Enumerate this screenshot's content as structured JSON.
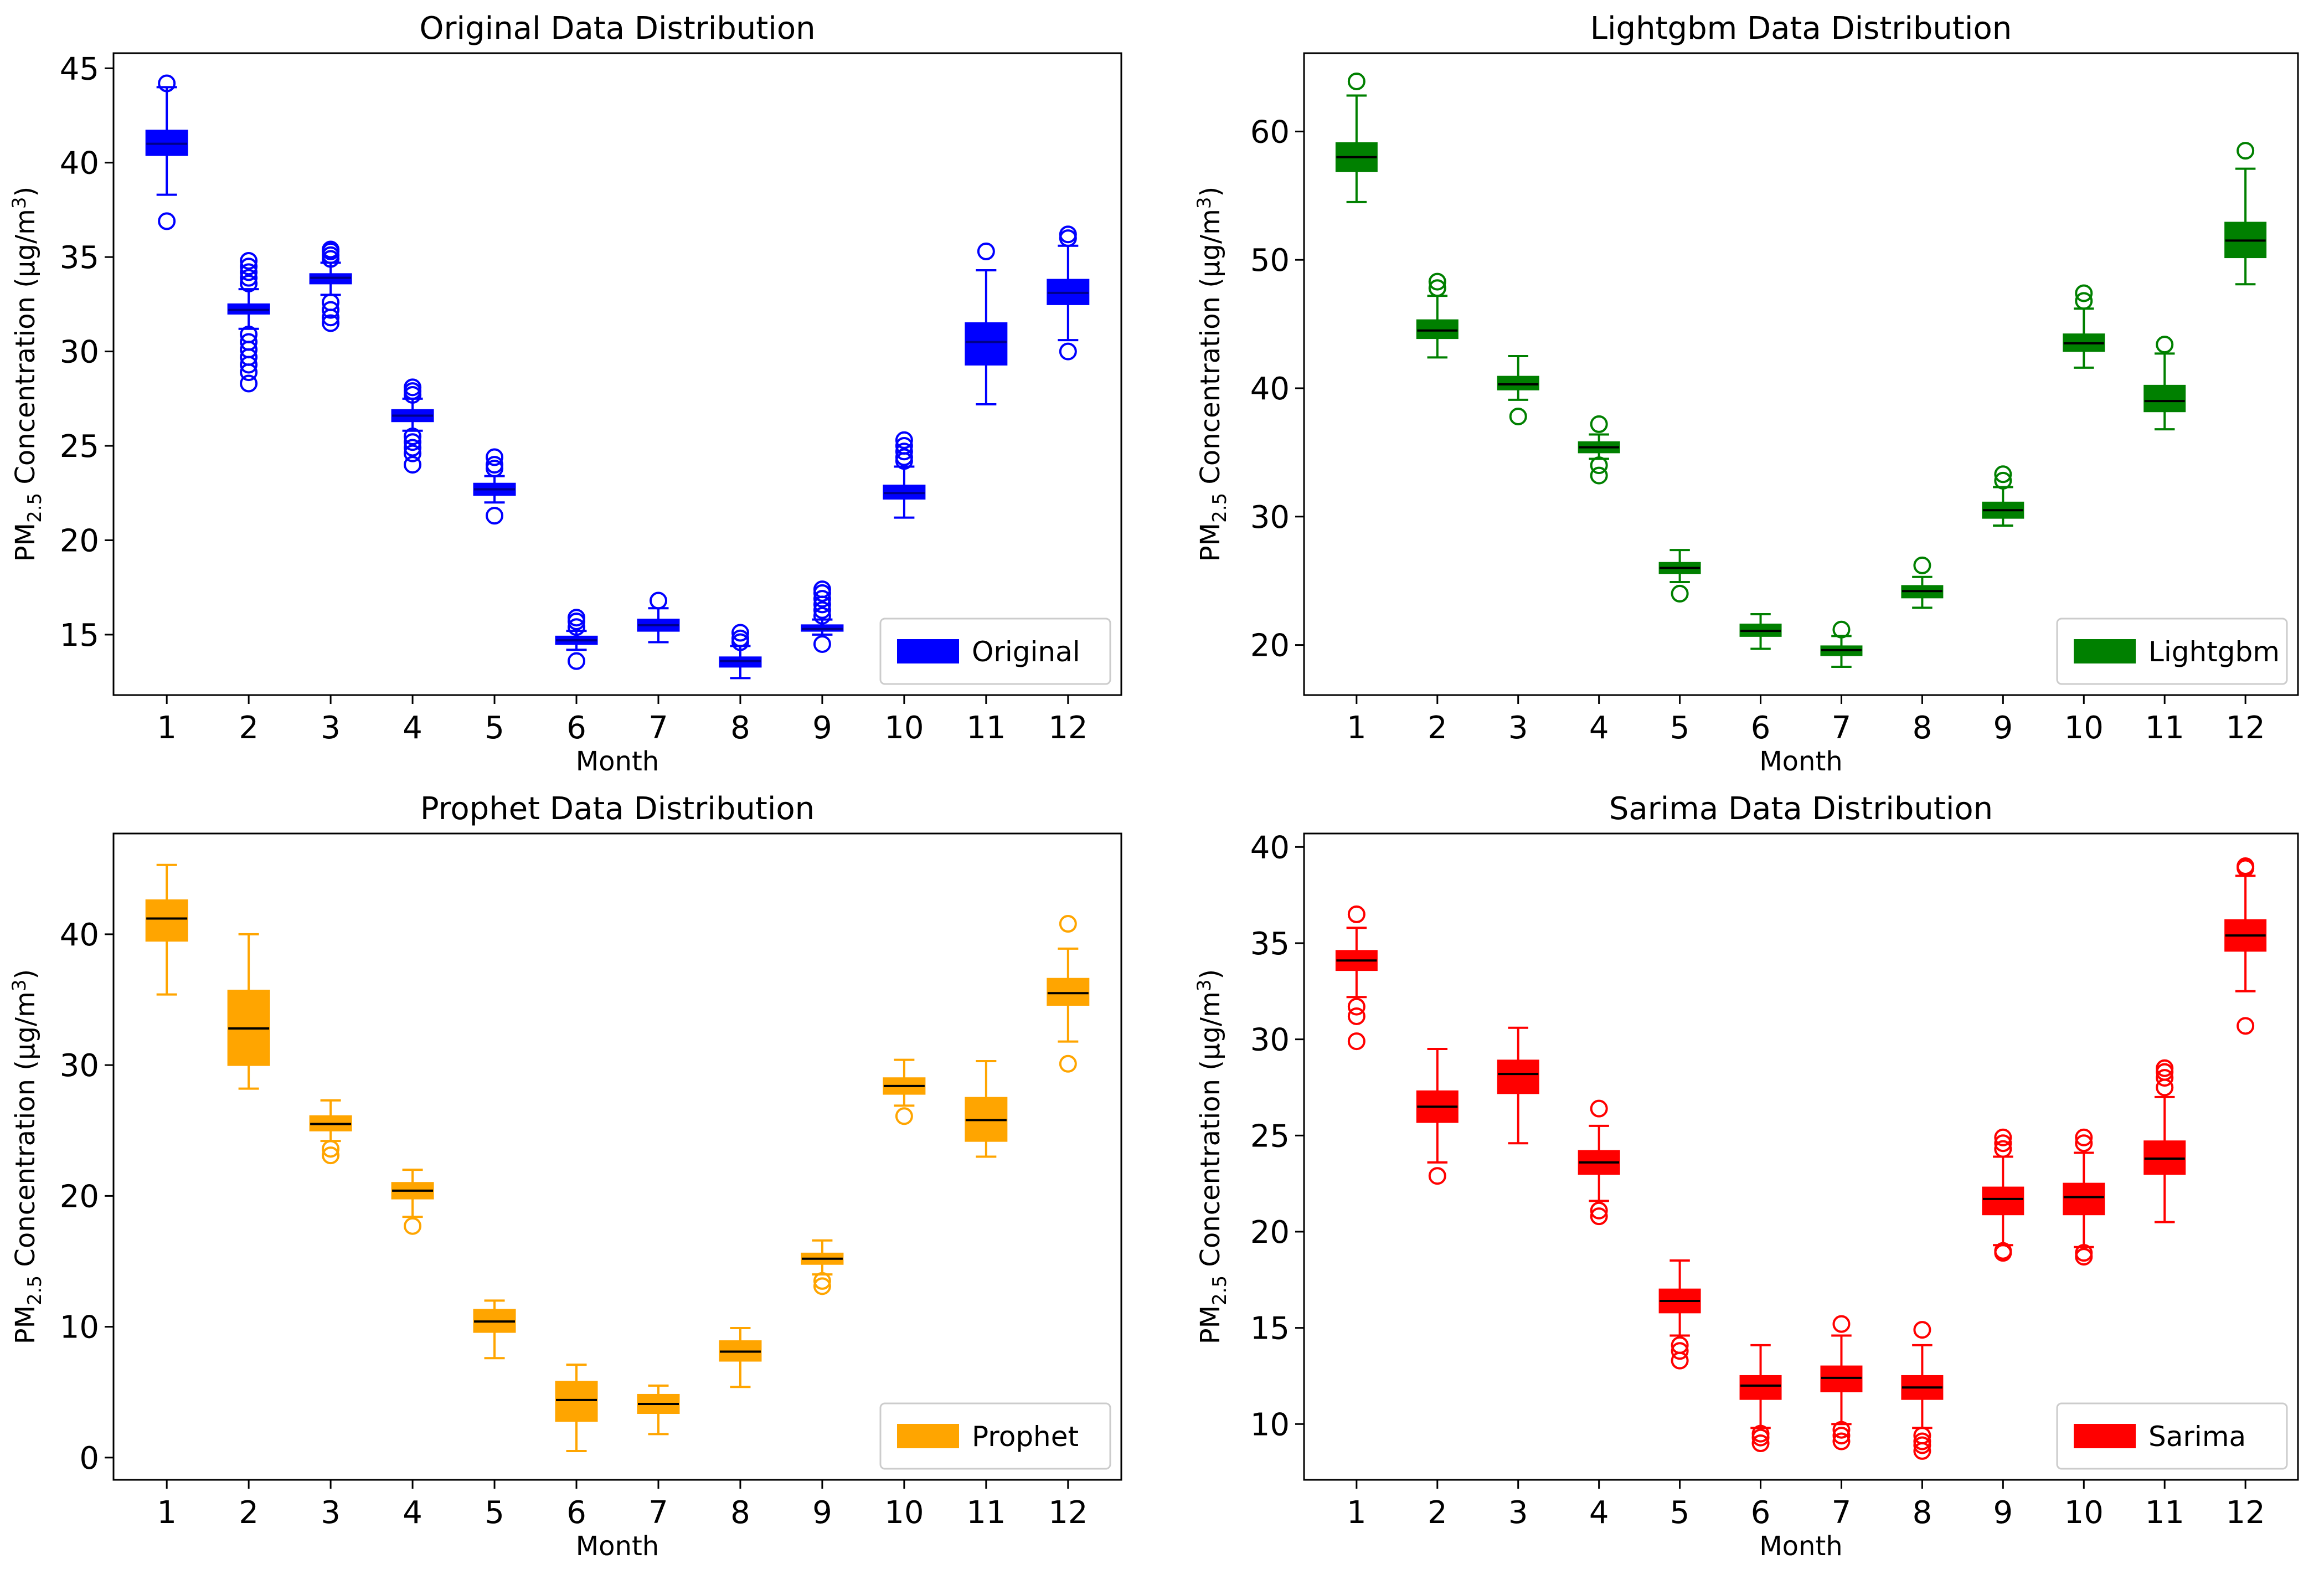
{
  "chart_data": [
    {
      "type": "box",
      "title": "Original Data Distribution",
      "xlabel": "Month",
      "ylabel": {
        "prefix": "PM",
        "sub": "2.5",
        "mid": " Concentration (µg/m",
        "sup": "3",
        "suffix": ")"
      },
      "color": "#0000ff",
      "median_color": "#00008b",
      "legend": "Original",
      "legend_position": "lower right",
      "categories": [
        "1",
        "2",
        "3",
        "4",
        "5",
        "6",
        "7",
        "8",
        "9",
        "10",
        "11",
        "12"
      ],
      "ylim": [
        11.8,
        45.8
      ],
      "yticks": [
        15,
        20,
        25,
        30,
        35,
        40,
        45
      ],
      "boxes": [
        {
          "low": 38.3,
          "q1": 40.4,
          "med": 41.0,
          "q3": 41.7,
          "high": 44.0,
          "fliers": [
            44.2,
            36.9
          ]
        },
        {
          "low": 31.2,
          "q1": 32.0,
          "med": 32.2,
          "q3": 32.5,
          "high": 33.3,
          "fliers": [
            33.6,
            33.9,
            34.2,
            34.5,
            34.8,
            30.9,
            30.5,
            30.1,
            29.7,
            29.3,
            28.9,
            28.3
          ]
        },
        {
          "low": 33.0,
          "q1": 33.6,
          "med": 33.9,
          "q3": 34.1,
          "high": 34.7,
          "fliers": [
            34.9,
            35.1,
            35.3,
            35.4,
            32.6,
            32.2,
            31.8,
            31.5
          ]
        },
        {
          "low": 25.8,
          "q1": 26.3,
          "med": 26.6,
          "q3": 26.9,
          "high": 27.5,
          "fliers": [
            27.7,
            27.9,
            28.1,
            25.5,
            25.2,
            24.9,
            24.6,
            24.0
          ]
        },
        {
          "low": 22.0,
          "q1": 22.4,
          "med": 22.7,
          "q3": 23.0,
          "high": 23.4,
          "fliers": [
            23.8,
            24.0,
            24.4,
            21.3
          ]
        },
        {
          "low": 14.2,
          "q1": 14.5,
          "med": 14.7,
          "q3": 14.9,
          "high": 15.2,
          "fliers": [
            15.4,
            15.7,
            15.9,
            13.6
          ]
        },
        {
          "low": 14.6,
          "q1": 15.2,
          "med": 15.5,
          "q3": 15.8,
          "high": 16.4,
          "fliers": [
            16.8
          ]
        },
        {
          "low": 12.7,
          "q1": 13.3,
          "med": 13.6,
          "q3": 13.8,
          "high": 14.4,
          "fliers": [
            14.6,
            14.8,
            15.1
          ]
        },
        {
          "low": 15.0,
          "q1": 15.2,
          "med": 15.3,
          "q3": 15.5,
          "high": 15.8,
          "fliers": [
            16.0,
            16.3,
            16.6,
            16.9,
            17.2,
            17.4,
            14.5
          ]
        },
        {
          "low": 21.2,
          "q1": 22.2,
          "med": 22.5,
          "q3": 22.9,
          "high": 23.9,
          "fliers": [
            24.2,
            24.4,
            24.7,
            25.0,
            25.3
          ]
        },
        {
          "low": 27.2,
          "q1": 29.3,
          "med": 30.5,
          "q3": 31.5,
          "high": 34.3,
          "fliers": [
            35.3
          ]
        },
        {
          "low": 30.6,
          "q1": 32.5,
          "med": 33.1,
          "q3": 33.8,
          "high": 35.6,
          "fliers": [
            36.0,
            36.2,
            30.0
          ]
        }
      ]
    },
    {
      "type": "box",
      "title": "Lightgbm Data Distribution",
      "xlabel": "Month",
      "ylabel": {
        "prefix": "PM",
        "sub": "2.5",
        "mid": " Concentration (µg/m",
        "sup": "3",
        "suffix": ")"
      },
      "color": "#008000",
      "median_color": "#000000",
      "legend": "Lightgbm",
      "legend_position": "lower right",
      "categories": [
        "1",
        "2",
        "3",
        "4",
        "5",
        "6",
        "7",
        "8",
        "9",
        "10",
        "11",
        "12"
      ],
      "ylim": [
        16.1,
        66.1
      ],
      "yticks": [
        20,
        30,
        40,
        50,
        60
      ],
      "boxes": [
        {
          "low": 54.5,
          "q1": 56.9,
          "med": 58.0,
          "q3": 59.1,
          "high": 62.8,
          "fliers": [
            63.9
          ]
        },
        {
          "low": 42.4,
          "q1": 43.9,
          "med": 44.5,
          "q3": 45.3,
          "high": 47.2,
          "fliers": [
            47.8,
            48.3
          ]
        },
        {
          "low": 39.1,
          "q1": 39.9,
          "med": 40.3,
          "q3": 40.9,
          "high": 42.5,
          "fliers": [
            37.8
          ]
        },
        {
          "low": 34.5,
          "q1": 35.0,
          "med": 35.4,
          "q3": 35.8,
          "high": 36.4,
          "fliers": [
            37.2,
            34.0,
            33.2
          ]
        },
        {
          "low": 24.9,
          "q1": 25.6,
          "med": 26.0,
          "q3": 26.4,
          "high": 27.4,
          "fliers": [
            24.0
          ]
        },
        {
          "low": 19.7,
          "q1": 20.7,
          "med": 21.1,
          "q3": 21.6,
          "high": 22.4,
          "fliers": []
        },
        {
          "low": 18.3,
          "q1": 19.2,
          "med": 19.6,
          "q3": 19.9,
          "high": 20.7,
          "fliers": [
            21.2
          ]
        },
        {
          "low": 22.9,
          "q1": 23.7,
          "med": 24.2,
          "q3": 24.6,
          "high": 25.3,
          "fliers": [
            26.2
          ]
        },
        {
          "low": 29.3,
          "q1": 29.9,
          "med": 30.5,
          "q3": 31.1,
          "high": 32.3,
          "fliers": [
            32.8,
            33.3
          ]
        },
        {
          "low": 41.6,
          "q1": 42.9,
          "med": 43.5,
          "q3": 44.2,
          "high": 46.2,
          "fliers": [
            46.8,
            47.4
          ]
        },
        {
          "low": 36.8,
          "q1": 38.2,
          "med": 39.0,
          "q3": 40.2,
          "high": 42.7,
          "fliers": [
            43.4
          ]
        },
        {
          "low": 48.1,
          "q1": 50.2,
          "med": 51.5,
          "q3": 52.9,
          "high": 57.1,
          "fliers": [
            58.5
          ]
        }
      ]
    },
    {
      "type": "box",
      "title": "Prophet Data Distribution",
      "xlabel": "Month",
      "ylabel": {
        "prefix": "PM",
        "sub": "2.5",
        "mid": " Concentration (µg/m",
        "sup": "3",
        "suffix": ")"
      },
      "color": "#ffa500",
      "median_color": "#000000",
      "legend": "Prophet",
      "legend_position": "lower right",
      "categories": [
        "1",
        "2",
        "3",
        "4",
        "5",
        "6",
        "7",
        "8",
        "9",
        "10",
        "11",
        "12"
      ],
      "ylim": [
        -1.7,
        47.7
      ],
      "yticks": [
        0,
        10,
        20,
        30,
        40
      ],
      "boxes": [
        {
          "low": 35.4,
          "q1": 39.5,
          "med": 41.2,
          "q3": 42.6,
          "high": 45.3,
          "fliers": []
        },
        {
          "low": 28.2,
          "q1": 30.0,
          "med": 32.8,
          "q3": 35.7,
          "high": 40.0,
          "fliers": []
        },
        {
          "low": 24.2,
          "q1": 25.0,
          "med": 25.5,
          "q3": 26.1,
          "high": 27.3,
          "fliers": [
            23.6,
            23.1
          ]
        },
        {
          "low": 18.4,
          "q1": 19.8,
          "med": 20.4,
          "q3": 21.0,
          "high": 22.0,
          "fliers": [
            17.7
          ]
        },
        {
          "low": 7.6,
          "q1": 9.6,
          "med": 10.4,
          "q3": 11.3,
          "high": 12.0,
          "fliers": []
        },
        {
          "low": 0.5,
          "q1": 2.8,
          "med": 4.4,
          "q3": 5.8,
          "high": 7.1,
          "fliers": []
        },
        {
          "low": 1.8,
          "q1": 3.4,
          "med": 4.1,
          "q3": 4.8,
          "high": 5.5,
          "fliers": []
        },
        {
          "low": 5.4,
          "q1": 7.4,
          "med": 8.1,
          "q3": 8.9,
          "high": 9.9,
          "fliers": []
        },
        {
          "low": 14.0,
          "q1": 14.8,
          "med": 15.2,
          "q3": 15.6,
          "high": 16.6,
          "fliers": [
            13.5,
            13.1
          ]
        },
        {
          "low": 26.9,
          "q1": 27.8,
          "med": 28.4,
          "q3": 29.0,
          "high": 30.4,
          "fliers": [
            26.1
          ]
        },
        {
          "low": 23.0,
          "q1": 24.2,
          "med": 25.8,
          "q3": 27.5,
          "high": 30.3,
          "fliers": []
        },
        {
          "low": 31.8,
          "q1": 34.6,
          "med": 35.5,
          "q3": 36.6,
          "high": 38.9,
          "fliers": [
            40.8,
            30.1
          ]
        }
      ]
    },
    {
      "type": "box",
      "title": "Sarima Data Distribution",
      "xlabel": "Month",
      "ylabel": {
        "prefix": "PM",
        "sub": "2.5",
        "mid": " Concentration (µg/m",
        "sup": "3",
        "suffix": ")"
      },
      "color": "#ff0000",
      "median_color": "#000000",
      "legend": "Sarima",
      "legend_position": "lower right",
      "categories": [
        "1",
        "2",
        "3",
        "4",
        "5",
        "6",
        "7",
        "8",
        "9",
        "10",
        "11",
        "12"
      ],
      "ylim": [
        7.1,
        40.7
      ],
      "yticks": [
        10,
        15,
        20,
        25,
        30,
        35,
        40
      ],
      "boxes": [
        {
          "low": 32.2,
          "q1": 33.6,
          "med": 34.1,
          "q3": 34.6,
          "high": 35.8,
          "fliers": [
            36.5,
            31.7,
            31.2,
            29.9
          ]
        },
        {
          "low": 23.6,
          "q1": 25.7,
          "med": 26.5,
          "q3": 27.3,
          "high": 29.5,
          "fliers": [
            22.9
          ]
        },
        {
          "low": 24.6,
          "q1": 27.2,
          "med": 28.2,
          "q3": 28.9,
          "high": 30.6,
          "fliers": []
        },
        {
          "low": 21.6,
          "q1": 23.0,
          "med": 23.6,
          "q3": 24.2,
          "high": 25.5,
          "fliers": [
            26.4,
            21.1,
            20.8
          ]
        },
        {
          "low": 14.6,
          "q1": 15.8,
          "med": 16.4,
          "q3": 17.0,
          "high": 18.5,
          "fliers": [
            14.1,
            13.8,
            13.3
          ]
        },
        {
          "low": 9.8,
          "q1": 11.3,
          "med": 12.0,
          "q3": 12.5,
          "high": 14.1,
          "fliers": [
            9.5,
            9.3,
            9.0
          ]
        },
        {
          "low": 10.0,
          "q1": 11.7,
          "med": 12.4,
          "q3": 13.0,
          "high": 14.6,
          "fliers": [
            15.2,
            9.7,
            9.4,
            9.1
          ]
        },
        {
          "low": 9.8,
          "q1": 11.3,
          "med": 11.9,
          "q3": 12.5,
          "high": 14.1,
          "fliers": [
            14.9,
            9.4,
            9.1,
            8.9,
            8.6
          ]
        },
        {
          "low": 19.3,
          "q1": 20.9,
          "med": 21.7,
          "q3": 22.3,
          "high": 23.9,
          "fliers": [
            24.3,
            24.6,
            24.9,
            19.0,
            18.9
          ]
        },
        {
          "low": 19.2,
          "q1": 20.9,
          "med": 21.8,
          "q3": 22.5,
          "high": 24.1,
          "fliers": [
            24.6,
            24.9,
            18.9,
            18.7
          ]
        },
        {
          "low": 20.5,
          "q1": 23.0,
          "med": 23.8,
          "q3": 24.7,
          "high": 27.0,
          "fliers": [
            27.5,
            28.0,
            28.3,
            28.5
          ]
        },
        {
          "low": 32.5,
          "q1": 34.6,
          "med": 35.4,
          "q3": 36.2,
          "high": 38.5,
          "fliers": [
            38.9,
            39.0,
            30.7
          ]
        }
      ]
    }
  ]
}
